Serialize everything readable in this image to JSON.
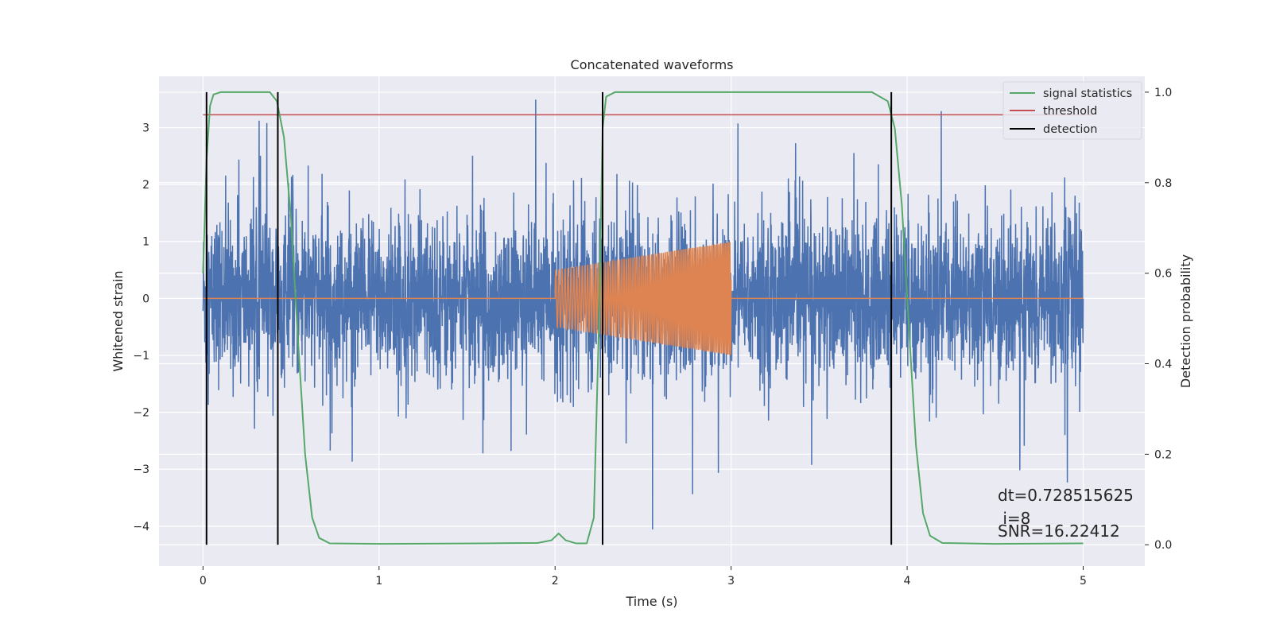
{
  "chart_data": {
    "type": "line",
    "title": "Concatenated waveforms",
    "xlabel": "Time (s)",
    "ylabel": "Whitened strain",
    "ylabel_right": "Detection probability",
    "xlim": [
      -0.25,
      5.35
    ],
    "ylim": [
      -4.7,
      3.9
    ],
    "ylim_right": [
      -0.047,
      1.035
    ],
    "x_ticks": [
      0,
      1,
      2,
      3,
      4,
      5
    ],
    "y_ticks": [
      -4,
      -3,
      -2,
      -1,
      0,
      1,
      2,
      3
    ],
    "y_ticks_right": [
      0.0,
      0.2,
      0.4,
      0.6,
      0.8,
      1.0
    ],
    "x_tick_labels": [
      "0",
      "1",
      "2",
      "3",
      "4",
      "5"
    ],
    "y_tick_labels": [
      "−4",
      "−3",
      "−2",
      "−1",
      "0",
      "1",
      "2",
      "3"
    ],
    "y_tick_labels_right": [
      "0.0",
      "0.2",
      "0.4",
      "0.6",
      "0.8",
      "1.0"
    ],
    "grid": true,
    "legend_position": "top-right",
    "colors": {
      "strain": "#4c72b0",
      "injection": "#dd8452",
      "signal_statistics": "#55a868",
      "threshold": "#c44e52",
      "detection": "#000000",
      "plot_bg": "#eaeaf2",
      "grid": "#ffffff"
    },
    "series": [
      {
        "name": "",
        "axis": "left",
        "kind": "noise",
        "x_range": [
          0,
          5
        ],
        "std": 0.95,
        "peak_min": -4.3,
        "peak_max": 3.55
      },
      {
        "name": "",
        "axis": "left",
        "kind": "chirp",
        "x_range": [
          2.0,
          3.0
        ],
        "amplitude_start": 0.5,
        "amplitude_end": 1.0
      },
      {
        "name": "signal statistics",
        "axis": "right",
        "x": [
          0,
          0.02,
          0.04,
          0.06,
          0.1,
          0.38,
          0.42,
          0.46,
          0.5,
          0.54,
          0.58,
          0.62,
          0.66,
          0.72,
          1.0,
          1.6,
          1.9,
          1.98,
          2.02,
          2.06,
          2.12,
          2.18,
          2.22,
          2.25,
          2.27,
          2.29,
          2.34,
          3.8,
          3.89,
          3.93,
          3.97,
          4.01,
          4.05,
          4.09,
          4.13,
          4.2,
          4.5,
          5.0
        ],
        "values": [
          0.6,
          0.85,
          0.97,
          0.995,
          1.0,
          1.0,
          0.98,
          0.9,
          0.72,
          0.45,
          0.2,
          0.06,
          0.015,
          0.003,
          0.002,
          0.003,
          0.004,
          0.01,
          0.025,
          0.01,
          0.003,
          0.003,
          0.06,
          0.5,
          0.92,
          0.99,
          1.0,
          1.0,
          0.98,
          0.92,
          0.75,
          0.48,
          0.22,
          0.07,
          0.02,
          0.004,
          0.002,
          0.003
        ]
      },
      {
        "name": "threshold",
        "axis": "right",
        "x": [
          0,
          5.05
        ],
        "values": [
          0.95,
          0.95
        ]
      },
      {
        "name": "detection",
        "axis": "right",
        "kind": "vlines",
        "x": [
          0.02,
          0.425,
          2.27,
          3.91
        ],
        "ymin": 0.0,
        "ymax": 1.0
      }
    ],
    "annotations": [
      "dt=0.728515625",
      " i=8",
      "SNR=16.22412"
    ]
  }
}
